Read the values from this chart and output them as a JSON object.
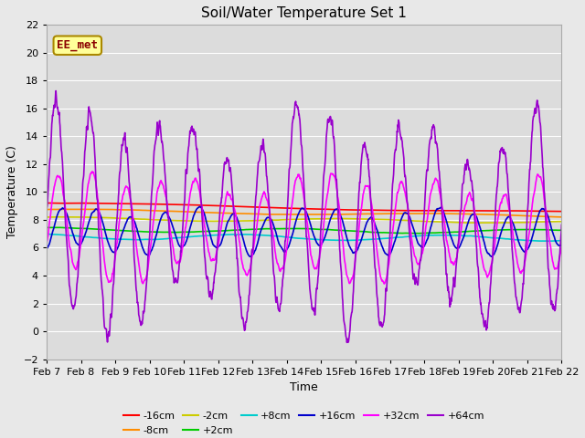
{
  "title": "Soil/Water Temperature Set 1",
  "xlabel": "Time",
  "ylabel": "Temperature (C)",
  "ylim": [
    -2,
    22
  ],
  "yticks": [
    -2,
    0,
    2,
    4,
    6,
    8,
    10,
    12,
    14,
    16,
    18,
    20,
    22
  ],
  "xlim_days": [
    0,
    15
  ],
  "x_tick_labels": [
    "Feb 7",
    "Feb 8",
    "Feb 9",
    "Feb 10",
    "Feb 11",
    "Feb 12",
    "Feb 13",
    "Feb 14",
    "Feb 15",
    "Feb 16",
    "Feb 17",
    "Feb 18",
    "Feb 19",
    "Feb 20",
    "Feb 21",
    "Feb 22"
  ],
  "annotation_text": "EE_met",
  "annotation_color": "#8B0000",
  "annotation_bg": "#FFFF99",
  "bg_color": "#E8E8E8",
  "plot_bg_color": "#DCDCDC",
  "grid_color": "#FFFFFF",
  "series": {
    "-16cm": {
      "color": "#FF0000",
      "lw": 1.2
    },
    "-8cm": {
      "color": "#FF8C00",
      "lw": 1.2
    },
    "-2cm": {
      "color": "#CCCC00",
      "lw": 1.2
    },
    "+2cm": {
      "color": "#00CC00",
      "lw": 1.2
    },
    "+8cm": {
      "color": "#00CCCC",
      "lw": 1.2
    },
    "+16cm": {
      "color": "#0000CC",
      "lw": 1.2
    },
    "+32cm": {
      "color": "#FF00FF",
      "lw": 1.2
    },
    "+64cm": {
      "color": "#9900CC",
      "lw": 1.2
    }
  },
  "figsize": [
    6.4,
    4.8
  ],
  "dpi": 100
}
